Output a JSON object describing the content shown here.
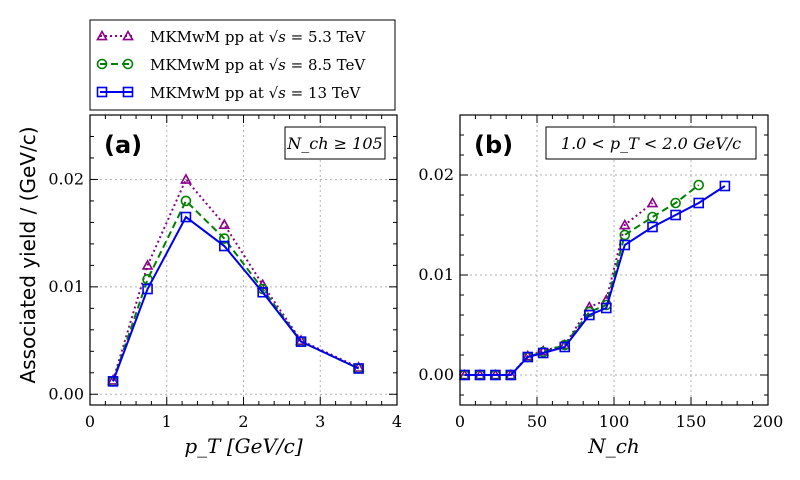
{
  "legend": {
    "entries": [
      {
        "label": "MKMwM pp at",
        "energy": "5.3 TeV",
        "color": "#8b008b",
        "marker": "triangle",
        "dash": "dotted"
      },
      {
        "label": "MKMwM pp at",
        "energy": "8.5 TeV",
        "color": "#008000",
        "marker": "circle",
        "dash": "dashed"
      },
      {
        "label": "MKMwM pp at",
        "energy": "13 TeV",
        "color": "#0000ee",
        "marker": "square",
        "dash": "solid"
      }
    ]
  },
  "chart_data": [
    {
      "type": "line",
      "panel": "(a)",
      "annotation": "N_ch ≥ 105",
      "xlabel": "p_T [GeV/c]",
      "ylabel": "Associated yield / (GeV/c)",
      "xlim": [
        0,
        4
      ],
      "ylim": [
        -0.001,
        0.026
      ],
      "xticks": [
        0,
        1,
        2,
        3,
        4
      ],
      "xtick_labels": [
        "0",
        "1",
        "2",
        "3",
        "4"
      ],
      "yticks": [
        0.0,
        0.01,
        0.02
      ],
      "ytick_labels": [
        "0.00",
        "0.01",
        "0.02"
      ],
      "grid": true,
      "series": [
        {
          "name": "5.3 TeV",
          "x": [
            0.3,
            0.75,
            1.25,
            1.75,
            2.25,
            2.75,
            3.5
          ],
          "y": [
            0.0013,
            0.012,
            0.02,
            0.0158,
            0.0102,
            0.005,
            0.0025
          ]
        },
        {
          "name": "8.5 TeV",
          "x": [
            0.3,
            0.75,
            1.25,
            1.75,
            2.25,
            2.75,
            3.5
          ],
          "y": [
            0.0012,
            0.0107,
            0.018,
            0.0145,
            0.0098,
            0.0049,
            0.0024
          ]
        },
        {
          "name": "13 TeV",
          "x": [
            0.3,
            0.75,
            1.25,
            1.75,
            2.25,
            2.75,
            3.5
          ],
          "y": [
            0.0012,
            0.0098,
            0.0165,
            0.0138,
            0.0095,
            0.0049,
            0.0024
          ]
        }
      ]
    },
    {
      "type": "line",
      "panel": "(b)",
      "annotation": "1.0 < p_T < 2.0 GeV/c",
      "xlabel": "N_ch",
      "ylabel": "",
      "xlim": [
        0,
        200
      ],
      "ylim": [
        -0.003,
        0.026
      ],
      "xticks": [
        0,
        50,
        100,
        150,
        200
      ],
      "xtick_labels": [
        "0",
        "50",
        "100",
        "150",
        "200"
      ],
      "yticks": [
        0.0,
        0.01,
        0.02
      ],
      "ytick_labels": [
        "0.00",
        "0.01",
        "0.02"
      ],
      "grid": true,
      "series": [
        {
          "name": "5.3 TeV",
          "x": [
            3,
            13,
            23,
            33,
            44,
            54,
            68,
            84,
            95,
            107,
            125
          ],
          "y": [
            0.0,
            0.0,
            0.0,
            0.0,
            0.0019,
            0.0024,
            0.003,
            0.0068,
            0.0075,
            0.015,
            0.0172
          ]
        },
        {
          "name": "8.5 TeV",
          "x": [
            3,
            13,
            23,
            33,
            44,
            54,
            68,
            84,
            95,
            107,
            125,
            140,
            155
          ],
          "y": [
            0.0,
            0.0,
            0.0,
            0.0,
            0.0018,
            0.0023,
            0.003,
            0.0063,
            0.007,
            0.014,
            0.0158,
            0.0172,
            0.019
          ]
        },
        {
          "name": "13 TeV",
          "x": [
            3,
            13,
            23,
            33,
            44,
            54,
            68,
            84,
            95,
            107,
            125,
            140,
            155,
            172
          ],
          "y": [
            0.0,
            0.0,
            0.0,
            0.0,
            0.0018,
            0.0022,
            0.0028,
            0.006,
            0.0067,
            0.013,
            0.0148,
            0.016,
            0.0172,
            0.0189
          ]
        }
      ]
    }
  ]
}
